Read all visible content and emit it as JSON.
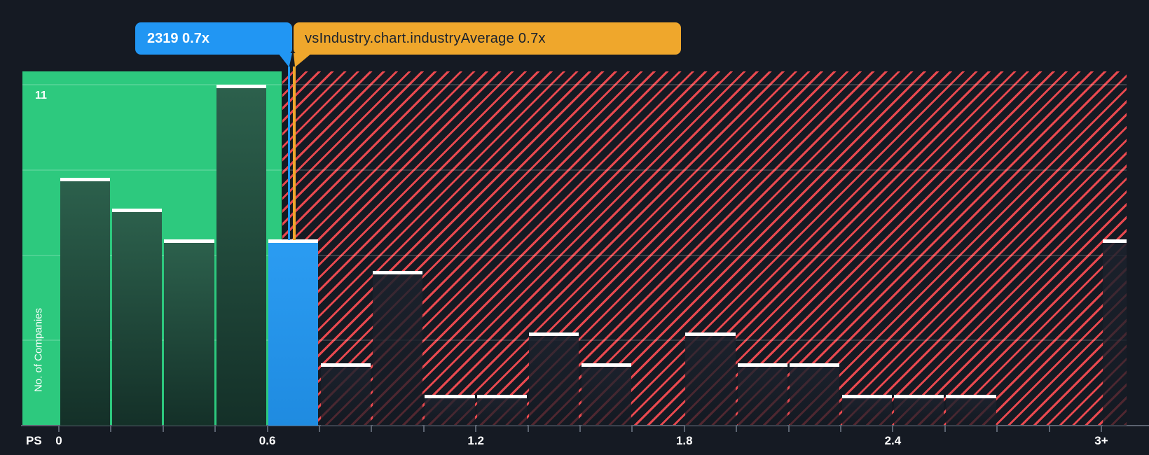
{
  "colors": {
    "background": "#151a23",
    "below_average_green": "#2dc97e",
    "company_blue": "#2196f3",
    "industry_orange": "#efa72c",
    "above_average_red": "#e9494f",
    "bar_cap_white": "#ffffff",
    "axis_gray": "#5b6370"
  },
  "chart_data": {
    "type": "bar",
    "title": "",
    "ylabel": "No. of Companies",
    "xlabel": "PS",
    "y_max": 11,
    "y_max_label": "11",
    "x_tick_labels": [
      "0",
      "0.6",
      "1.2",
      "1.8",
      "2.4",
      "3+"
    ],
    "x_range": [
      0,
      3
    ],
    "bin_width": 0.15,
    "grid": true,
    "legend_position": "none",
    "highlight": {
      "label": "2319 0.7x",
      "company": "2319",
      "value": "0.7x",
      "count": 6,
      "bin_from": 0.6,
      "bin_to": 0.75
    },
    "industry_average": {
      "label": "vsIndustry.chart.industryAverage 0.7x",
      "value": "0.7x"
    },
    "overflow_bin": {
      "label": "3+",
      "from": 3.0,
      "count": 6,
      "zone": "above_average"
    },
    "bins": [
      {
        "from": 0.0,
        "to": 0.15,
        "count": 8,
        "zone": "below_average"
      },
      {
        "from": 0.15,
        "to": 0.3,
        "count": 7,
        "zone": "below_average"
      },
      {
        "from": 0.3,
        "to": 0.45,
        "count": 6,
        "zone": "below_average"
      },
      {
        "from": 0.45,
        "to": 0.6,
        "count": 11,
        "zone": "below_average"
      },
      {
        "from": 0.6,
        "to": 0.75,
        "count": 6,
        "zone": "company"
      },
      {
        "from": 0.75,
        "to": 0.9,
        "count": 2,
        "zone": "above_average"
      },
      {
        "from": 0.9,
        "to": 1.05,
        "count": 5,
        "zone": "above_average"
      },
      {
        "from": 1.05,
        "to": 1.2,
        "count": 1,
        "zone": "above_average"
      },
      {
        "from": 1.2,
        "to": 1.35,
        "count": 1,
        "zone": "above_average"
      },
      {
        "from": 1.35,
        "to": 1.5,
        "count": 3,
        "zone": "above_average"
      },
      {
        "from": 1.5,
        "to": 1.65,
        "count": 2,
        "zone": "above_average"
      },
      {
        "from": 1.65,
        "to": 1.8,
        "count": 0,
        "zone": "above_average"
      },
      {
        "from": 1.8,
        "to": 1.95,
        "count": 3,
        "zone": "above_average"
      },
      {
        "from": 1.95,
        "to": 2.1,
        "count": 2,
        "zone": "above_average"
      },
      {
        "from": 2.1,
        "to": 2.25,
        "count": 2,
        "zone": "above_average"
      },
      {
        "from": 2.25,
        "to": 2.4,
        "count": 1,
        "zone": "above_average"
      },
      {
        "from": 2.4,
        "to": 2.55,
        "count": 1,
        "zone": "above_average"
      },
      {
        "from": 2.55,
        "to": 2.7,
        "count": 1,
        "zone": "above_average"
      },
      {
        "from": 2.7,
        "to": 2.85,
        "count": 0,
        "zone": "above_average"
      },
      {
        "from": 2.85,
        "to": 3.0,
        "count": 0,
        "zone": "above_average"
      }
    ]
  }
}
